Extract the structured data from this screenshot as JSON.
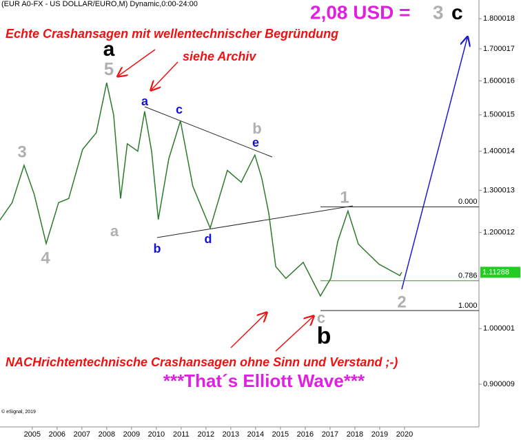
{
  "chart_data": {
    "type": "line",
    "header": "(EUR A0-FX - US DOLLAR/EURO,M) Dynamic,0:00-24:00",
    "footer": "© eSignal, 2019",
    "x": [
      2003.69,
      2004.19,
      2004.67,
      2005.08,
      2005.56,
      2006.06,
      2006.47,
      2007.03,
      2007.58,
      2008.0,
      2008.28,
      2008.56,
      2008.83,
      2009.25,
      2009.53,
      2009.81,
      2010.08,
      2010.5,
      2010.97,
      2011.47,
      2012.17,
      2012.86,
      2013.42,
      2013.97,
      2014.25,
      2014.53,
      2014.81,
      2015.22,
      2015.92,
      2016.61,
      2017.03,
      2017.31,
      2017.72,
      2018.14,
      2018.97,
      2019.81,
      2019.89
    ],
    "values": [
      1.228,
      1.27,
      1.363,
      1.29,
      1.175,
      1.27,
      1.28,
      1.405,
      1.45,
      1.594,
      1.5,
      1.28,
      1.42,
      1.4,
      1.51,
      1.4,
      1.23,
      1.38,
      1.483,
      1.31,
      1.21,
      1.35,
      1.32,
      1.39,
      1.33,
      1.245,
      1.125,
      1.1,
      1.134,
      1.064,
      1.1,
      1.18,
      1.25,
      1.174,
      1.13,
      1.106,
      1.11288
    ],
    "color": "#2a7a2a",
    "log_scale": true,
    "xlim": [
      2003.7,
      2023
    ],
    "xticks": [
      2005,
      2006,
      2007,
      2008,
      2009,
      2010,
      2011,
      2012,
      2013,
      2014,
      2015,
      2016,
      2017,
      2018,
      2019,
      2020
    ],
    "ylim": [
      0.83,
      1.865
    ],
    "yticks": [
      1.800018,
      1.700017,
      1.600016,
      1.500015,
      1.400014,
      1.300013,
      1.200012,
      1.000001,
      0.900009
    ],
    "fib_levels": [
      {
        "label": "0.000",
        "price": 1.26
      },
      {
        "label": "0.786",
        "price": 1.095
      },
      {
        "label": "1.000",
        "price": 1.035
      }
    ],
    "annotations": [
      {
        "text": "2,08 USD = ",
        "color": "#e020e0"
      },
      {
        "text": "3",
        "color": "#b0b0b0"
      },
      {
        "text": "c",
        "color": "#000000"
      },
      {
        "text": "Echte Crashansagen mit wellentechnischer Begründung",
        "color": "#ee1111"
      },
      {
        "text": "siehe Archiv",
        "color": "#ee1111"
      },
      {
        "text": "a",
        "color": "#000000"
      },
      {
        "text": "5",
        "color": "#b0b0b0"
      },
      {
        "text": "a",
        "color": "#1010dd"
      },
      {
        "text": "c",
        "color": "#1010dd"
      },
      {
        "text": "b",
        "color": "#b0b0b0"
      },
      {
        "text": "e",
        "color": "#1010dd"
      },
      {
        "text": "3",
        "color": "#b0b0b0"
      },
      {
        "text": "a",
        "color": "#b0b0b0"
      },
      {
        "text": "b",
        "color": "#1010dd"
      },
      {
        "text": "d",
        "color": "#1010dd"
      },
      {
        "text": "4",
        "color": "#b0b0b0"
      },
      {
        "text": "1",
        "color": "#b0b0b0"
      },
      {
        "text": "2",
        "color": "#b0b0b0"
      },
      {
        "text": "c",
        "color": "#b0b0b0"
      },
      {
        "text": "b",
        "color": "#000000"
      },
      {
        "text": "NACHrichtentechnische Crashansagen ohne Sinn und Verstand ;-)",
        "color": "#ee1111"
      },
      {
        "text": "***That´s Elliott Wave***",
        "color": "#e020e0"
      }
    ]
  }
}
